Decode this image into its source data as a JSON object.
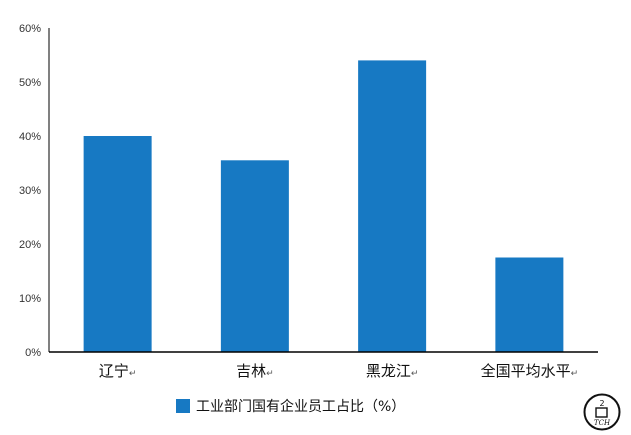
{
  "chart_data": {
    "type": "bar",
    "categories": [
      "辽宁",
      "吉林",
      "黑龙江",
      "全国平均水平"
    ],
    "category_suffix": "↵",
    "series": [
      {
        "name": "工业部门国有企业员工占比（%）",
        "values": [
          40,
          35.5,
          54,
          17.5
        ]
      }
    ],
    "ylim": [
      0,
      60
    ],
    "yticks": [
      "0%",
      "10%",
      "20%",
      "30%",
      "40%",
      "50%",
      "60%"
    ],
    "grid": false,
    "legend_position": "bottom",
    "bar_color": "#1779C3"
  },
  "logo": {
    "icon": "round-2-tch-logo",
    "text_top": "2",
    "text_bottom": "TCH"
  }
}
